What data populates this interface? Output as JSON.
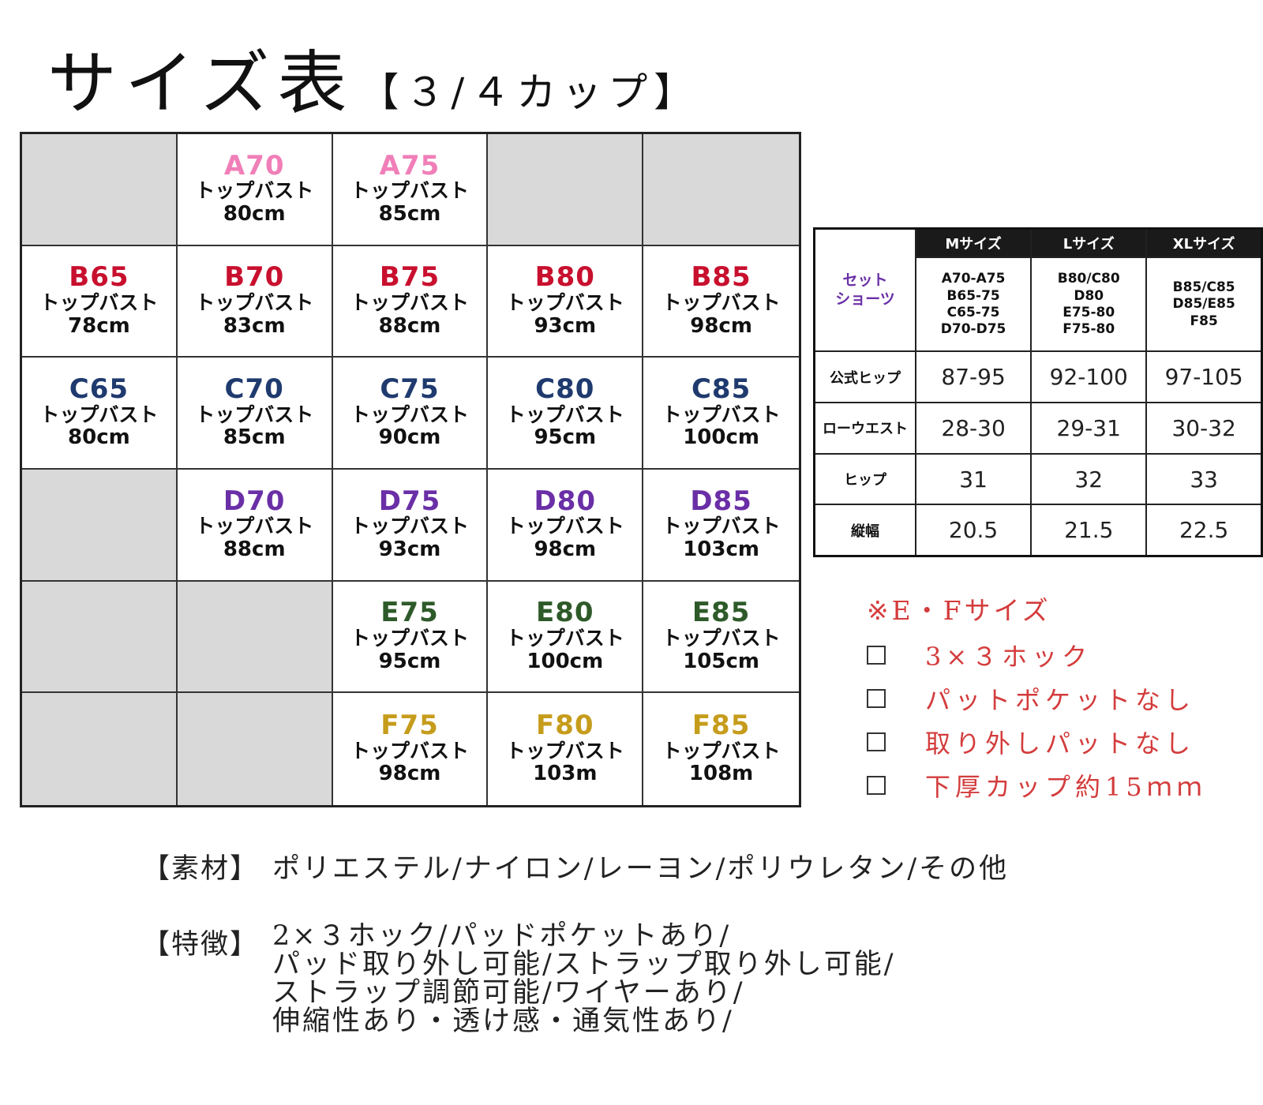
{
  "title": {
    "main": "サイズ表",
    "sub": "【３/４カップ】"
  },
  "colors": {
    "A": "#f07fb8",
    "B": "#c8102e",
    "C": "#1f3a6e",
    "D": "#6a2fa6",
    "E": "#2e5a2a",
    "F": "#c69c1b"
  },
  "grid": {
    "label": "トップバスト",
    "rows": [
      [
        {
          "empty": true
        },
        {
          "code": "A70",
          "cup": "A",
          "val": "80cm"
        },
        {
          "code": "A75",
          "cup": "A",
          "val": "85cm"
        },
        {
          "empty": true
        },
        {
          "empty": true
        }
      ],
      [
        {
          "code": "B65",
          "cup": "B",
          "val": "78cm"
        },
        {
          "code": "B70",
          "cup": "B",
          "val": "83cm"
        },
        {
          "code": "B75",
          "cup": "B",
          "val": "88cm"
        },
        {
          "code": "B80",
          "cup": "B",
          "val": "93cm"
        },
        {
          "code": "B85",
          "cup": "B",
          "val": "98cm"
        }
      ],
      [
        {
          "code": "C65",
          "cup": "C",
          "val": "80cm"
        },
        {
          "code": "C70",
          "cup": "C",
          "val": "85cm"
        },
        {
          "code": "C75",
          "cup": "C",
          "val": "90cm"
        },
        {
          "code": "C80",
          "cup": "C",
          "val": "95cm"
        },
        {
          "code": "C85",
          "cup": "C",
          "val": "100cm"
        }
      ],
      [
        {
          "empty": true
        },
        {
          "code": "D70",
          "cup": "D",
          "val": "88cm"
        },
        {
          "code": "D75",
          "cup": "D",
          "val": "93cm"
        },
        {
          "code": "D80",
          "cup": "D",
          "val": "98cm"
        },
        {
          "code": "D85",
          "cup": "D",
          "val": "103cm"
        }
      ],
      [
        {
          "empty": true
        },
        {
          "empty": true
        },
        {
          "code": "E75",
          "cup": "E",
          "val": "95cm"
        },
        {
          "code": "E80",
          "cup": "E",
          "val": "100cm"
        },
        {
          "code": "E85",
          "cup": "E",
          "val": "105cm"
        }
      ],
      [
        {
          "empty": true
        },
        {
          "empty": true
        },
        {
          "code": "F75",
          "cup": "F",
          "val": "98cm"
        },
        {
          "code": "F80",
          "cup": "F",
          "val": "103m"
        },
        {
          "code": "F85",
          "cup": "F",
          "val": "108m"
        }
      ]
    ]
  },
  "shorts": {
    "corner": "セット\nショーツ",
    "headers": [
      "Mサイズ",
      "Lサイズ",
      "XLサイズ"
    ],
    "size_ranges": [
      "A70-A75\nB65-75\nC65-75\nD70-D75",
      "B80/C80\nD80\nE75-80\nF75-80",
      "B85/C85\nD85/E85\nF85"
    ],
    "rows": [
      {
        "label": "公式ヒップ",
        "values": [
          "87-95",
          "92-100",
          "97-105"
        ]
      },
      {
        "label": "ローウエスト",
        "values": [
          "28-30",
          "29-31",
          "30-32"
        ]
      },
      {
        "label": "ヒップ",
        "values": [
          "31",
          "32",
          "33"
        ]
      },
      {
        "label": "縦幅",
        "values": [
          "20.5",
          "21.5",
          "22.5"
        ]
      }
    ]
  },
  "notes": {
    "title": "※E・Fサイズ",
    "items": [
      "3×３ホック",
      "パットポケットなし",
      "取り外しパットなし",
      "下厚カップ約15ｍｍ"
    ]
  },
  "material": {
    "label": "【素材】",
    "text": "ポリエステル/ナイロン/レーヨン/ポリウレタン/その他"
  },
  "features": {
    "label": "【特徴】",
    "lines": [
      "2×３ホック/パッドポケットあり/",
      "パッド取り外し可能/ストラップ取り外し可能/",
      "ストラップ調節可能/ワイヤーあり/",
      "伸縮性あり・透け感・通気性あり/"
    ]
  }
}
